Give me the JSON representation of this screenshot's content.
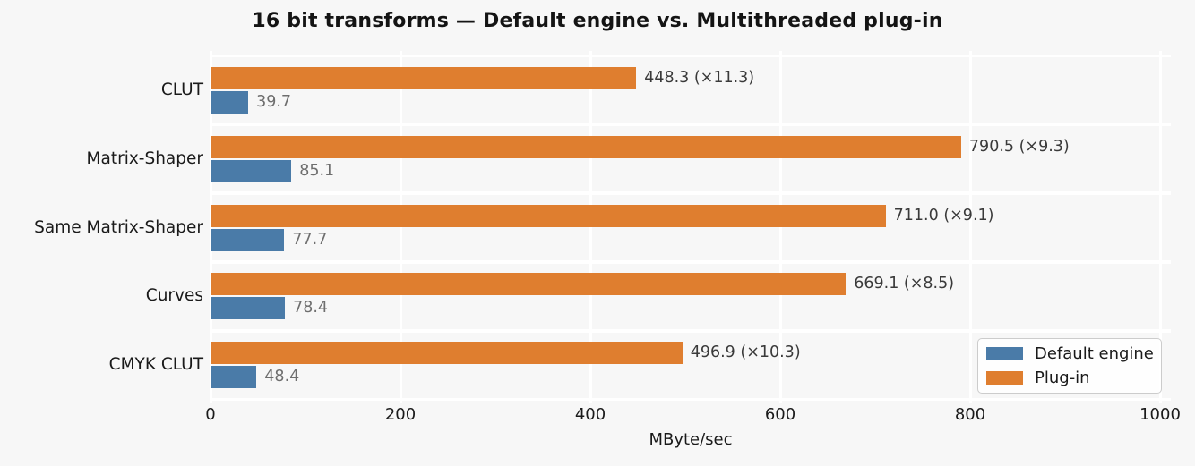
{
  "figure": {
    "background_color": "#f7f7f7",
    "gridline_color": "#ffffff"
  },
  "chart_data": {
    "type": "bar",
    "orientation": "horizontal",
    "title": "16 bit transforms — Default engine vs. Multithreaded plug-in",
    "xlabel": "MByte/sec",
    "xlim": [
      0,
      1000
    ],
    "xticks": [
      "0",
      "200",
      "400",
      "600",
      "800",
      "1000"
    ],
    "xtick_values": [
      0,
      200,
      400,
      600,
      800,
      1000
    ],
    "grid": "white vertical gridlines at x ticks and white horizontal lines between category bands, on light gray background",
    "categories": [
      "CLUT",
      "Matrix-Shaper",
      "Same Matrix-Shaper",
      "Curves",
      "CMYK CLUT"
    ],
    "series": [
      {
        "name": "Plug-in",
        "color": "#df7e2f",
        "values": [
          448.3,
          790.5,
          711.0,
          669.1,
          496.9
        ],
        "bar_labels": [
          "448.3 (×11.3)",
          "790.5 (×9.3)",
          "711.0 (×9.1)",
          "669.1 (×8.5)",
          "496.9 (×10.3)"
        ],
        "label_color": "#3a3a3a",
        "row_position": "top"
      },
      {
        "name": "Default engine",
        "color": "#4a7ba8",
        "values": [
          39.7,
          85.1,
          77.7,
          78.4,
          48.4
        ],
        "bar_labels": [
          "39.7",
          "85.1",
          "77.7",
          "78.4",
          "48.4"
        ],
        "label_color": "#6e6e6e",
        "row_position": "bottom"
      }
    ],
    "speedup_factors": [
      11.3,
      9.3,
      9.1,
      8.5,
      10.3
    ],
    "legend": {
      "position": "lower right",
      "entries": [
        {
          "label": "Default engine",
          "color": "#4a7ba8"
        },
        {
          "label": "Plug-in",
          "color": "#df7e2f"
        }
      ]
    }
  }
}
